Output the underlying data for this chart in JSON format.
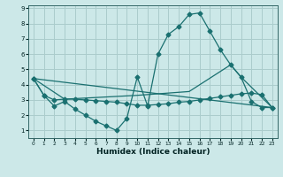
{
  "bg_color": "#cce8e8",
  "grid_color": "#aacccc",
  "line_color": "#1a7070",
  "xlabel": "Humidex (Indice chaleur)",
  "xlim": [
    -0.5,
    23.5
  ],
  "ylim": [
    0.5,
    9.2
  ],
  "xticks": [
    0,
    1,
    2,
    3,
    4,
    5,
    6,
    7,
    8,
    9,
    10,
    11,
    12,
    13,
    14,
    15,
    16,
    17,
    18,
    19,
    20,
    21,
    22,
    23
  ],
  "yticks": [
    1,
    2,
    3,
    4,
    5,
    6,
    7,
    8,
    9
  ],
  "line1_x": [
    0,
    1,
    2,
    3,
    4,
    5,
    6,
    7,
    8,
    9,
    10,
    11,
    12,
    13,
    14,
    15,
    16,
    17,
    18,
    19,
    20,
    21,
    22,
    23
  ],
  "line1_y": [
    4.4,
    3.3,
    2.6,
    2.9,
    2.4,
    2.0,
    1.6,
    1.3,
    1.0,
    1.8,
    4.5,
    2.6,
    6.0,
    7.3,
    7.8,
    8.6,
    8.7,
    7.5,
    6.3,
    5.3,
    4.5,
    2.9,
    2.5,
    2.5
  ],
  "line2_x": [
    0,
    1,
    2,
    3,
    4,
    5,
    6,
    7,
    8,
    9,
    10,
    11,
    12,
    13,
    14,
    15,
    16,
    17,
    18,
    19,
    20,
    21,
    22,
    23
  ],
  "line2_y": [
    4.4,
    3.3,
    3.0,
    3.05,
    3.05,
    3.0,
    2.95,
    2.9,
    2.85,
    2.75,
    2.65,
    2.65,
    2.7,
    2.75,
    2.85,
    2.9,
    3.0,
    3.1,
    3.2,
    3.3,
    3.4,
    3.45,
    3.35,
    2.5
  ],
  "line3_x": [
    0,
    23
  ],
  "line3_y": [
    4.4,
    2.5
  ],
  "line4_x": [
    0,
    3,
    10,
    15,
    19,
    20,
    23
  ],
  "line4_y": [
    4.4,
    3.05,
    3.3,
    3.55,
    5.3,
    4.5,
    2.5
  ]
}
